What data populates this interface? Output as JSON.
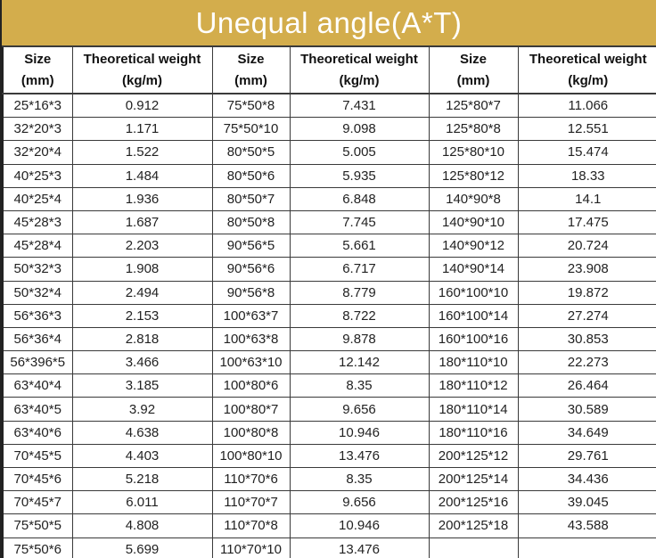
{
  "banner": {
    "title": "Unequal angle(A*T)",
    "background_color": "#d3ad4c",
    "title_color": "#ffffff"
  },
  "table": {
    "header": {
      "size_label": "Size",
      "size_unit": "(mm)",
      "weight_label": "Theoretical weight",
      "weight_unit": "(kg/m)"
    },
    "columns_repeated": 3,
    "rows": [
      [
        "25*16*3",
        "0.912",
        "75*50*8",
        "7.431",
        "125*80*7",
        "11.066"
      ],
      [
        "32*20*3",
        "1.171",
        "75*50*10",
        "9.098",
        "125*80*8",
        "12.551"
      ],
      [
        "32*20*4",
        "1.522",
        "80*50*5",
        "5.005",
        "125*80*10",
        "15.474"
      ],
      [
        "40*25*3",
        "1.484",
        "80*50*6",
        "5.935",
        "125*80*12",
        "18.33"
      ],
      [
        "40*25*4",
        "1.936",
        "80*50*7",
        "6.848",
        "140*90*8",
        "14.1"
      ],
      [
        "45*28*3",
        "1.687",
        "80*50*8",
        "7.745",
        "140*90*10",
        "17.475"
      ],
      [
        "45*28*4",
        "2.203",
        "90*56*5",
        "5.661",
        "140*90*12",
        "20.724"
      ],
      [
        "50*32*3",
        "1.908",
        "90*56*6",
        "6.717",
        "140*90*14",
        "23.908"
      ],
      [
        "50*32*4",
        "2.494",
        "90*56*8",
        "8.779",
        "160*100*10",
        "19.872"
      ],
      [
        "56*36*3",
        "2.153",
        "100*63*7",
        "8.722",
        "160*100*14",
        "27.274"
      ],
      [
        "56*36*4",
        "2.818",
        "100*63*8",
        "9.878",
        "160*100*16",
        "30.853"
      ],
      [
        "56*396*5",
        "3.466",
        "100*63*10",
        "12.142",
        "180*110*10",
        "22.273"
      ],
      [
        "63*40*4",
        "3.185",
        "100*80*6",
        "8.35",
        "180*110*12",
        "26.464"
      ],
      [
        "63*40*5",
        "3.92",
        "100*80*7",
        "9.656",
        "180*110*14",
        "30.589"
      ],
      [
        "63*40*6",
        "4.638",
        "100*80*8",
        "10.946",
        "180*110*16",
        "34.649"
      ],
      [
        "70*45*5",
        "4.403",
        "100*80*10",
        "13.476",
        "200*125*12",
        "29.761"
      ],
      [
        "70*45*6",
        "5.218",
        "110*70*6",
        "8.35",
        "200*125*14",
        "34.436"
      ],
      [
        "70*45*7",
        "6.011",
        "110*70*7",
        "9.656",
        "200*125*16",
        "39.045"
      ],
      [
        "75*50*5",
        "4.808",
        "110*70*8",
        "10.946",
        "200*125*18",
        "43.588"
      ],
      [
        "75*50*6",
        "5.699",
        "110*70*10",
        "13.476",
        "",
        ""
      ]
    ]
  }
}
